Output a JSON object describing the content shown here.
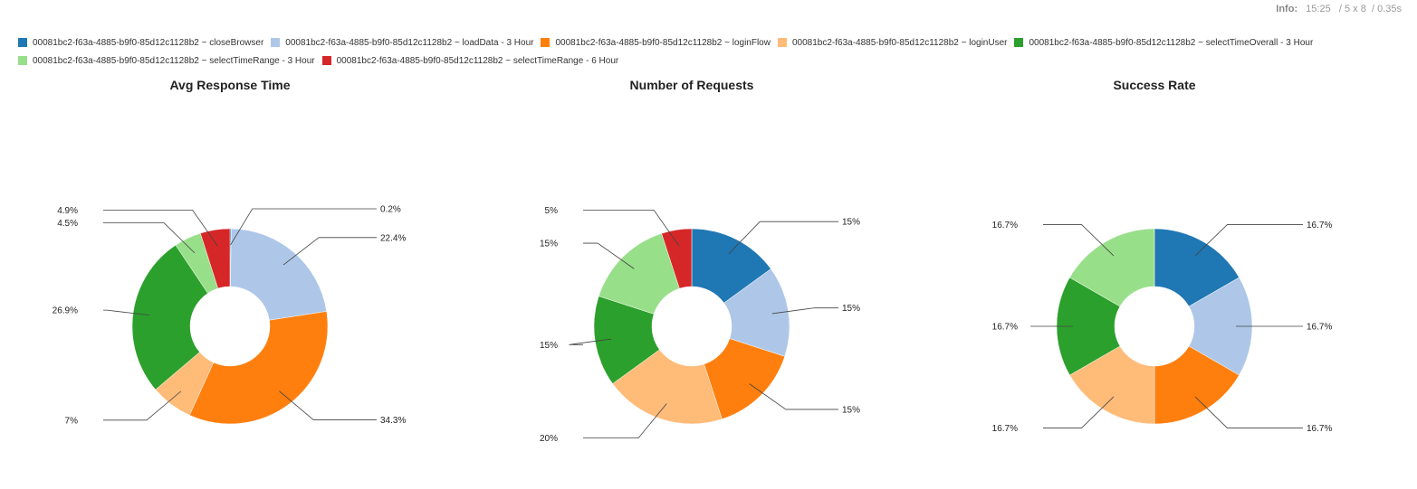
{
  "info": {
    "label": "Info:",
    "time": "15:25",
    "grid": "5 x 8",
    "duration": "0.35s"
  },
  "colors": [
    "#1f77b4",
    "#aec7e8",
    "#ff7f0e",
    "#ffbb78",
    "#2ca02c",
    "#98df8a",
    "#d62728"
  ],
  "legend": [
    "00081bc2-f63a-4885-b9f0-85d12c1128b2 ~ closeBrowser",
    "00081bc2-f63a-4885-b9f0-85d12c1128b2 ~ loadData - 3 Hour",
    "00081bc2-f63a-4885-b9f0-85d12c1128b2 ~ loginFlow",
    "00081bc2-f63a-4885-b9f0-85d12c1128b2 ~ loginUser",
    "00081bc2-f63a-4885-b9f0-85d12c1128b2 ~ selectTimeOverall - 3 Hour",
    "00081bc2-f63a-4885-b9f0-85d12c1128b2 ~ selectTimeRange - 3 Hour",
    "00081bc2-f63a-4885-b9f0-85d12c1128b2 ~ selectTimeRange - 6 Hour"
  ],
  "chart_data": [
    {
      "type": "pie",
      "title": "Avg Response Time",
      "values": [
        0.2,
        22.4,
        34.3,
        7,
        26.9,
        4.5,
        4.9
      ],
      "labels": [
        "0.2%",
        "22.4%",
        "34.3%",
        "7%",
        "26.9%",
        "4.5%",
        "4.9%"
      ],
      "donut": true,
      "legend": "top-left"
    },
    {
      "type": "pie",
      "title": "Number of Requests",
      "values": [
        15,
        15,
        15,
        20,
        15,
        15,
        5
      ],
      "labels": [
        "15%",
        "15%",
        "15%",
        "20%",
        "15%",
        "15%",
        "5%"
      ],
      "donut": true,
      "legend": "top-left"
    },
    {
      "type": "pie",
      "title": "Success Rate",
      "values": [
        16.7,
        16.7,
        16.7,
        16.7,
        16.7,
        16.7,
        0
      ],
      "labels": [
        "16.7%",
        "16.7%",
        "16.7%",
        "16.7%",
        "16.7%",
        "16.7%",
        ""
      ],
      "donut": true,
      "legend": "top-left"
    }
  ]
}
